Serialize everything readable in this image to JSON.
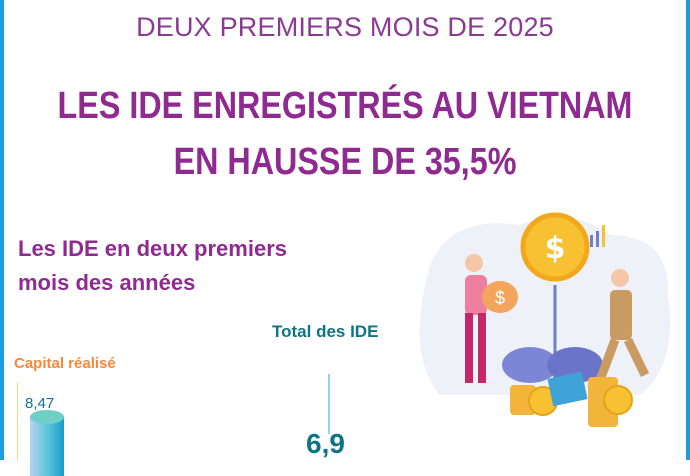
{
  "header": {
    "supertitle": "DEUX PREMIERS MOIS DE 2025",
    "title_line1": "LES IDE ENREGISTRÉS AU VIETNAM",
    "title_line2": "EN HAUSSE DE 35,5%"
  },
  "section": {
    "line1": "Les IDE en deux premiers",
    "line2": "mois des années"
  },
  "chart_data": {
    "type": "bar",
    "series": [
      {
        "name": "Capital réalisé",
        "values": [
          8.47
        ]
      },
      {
        "name": "Total des IDE",
        "values": [
          6.9
        ]
      }
    ],
    "labels": {
      "capital": "Capital réalisé",
      "total": "Total des IDE"
    },
    "value_labels": {
      "capital": "8,47",
      "total": "6,9"
    }
  },
  "colors": {
    "purple": "#8e2a90",
    "teal": "#0e7485",
    "orange": "#f5883a",
    "border": "#1a9ee0"
  }
}
